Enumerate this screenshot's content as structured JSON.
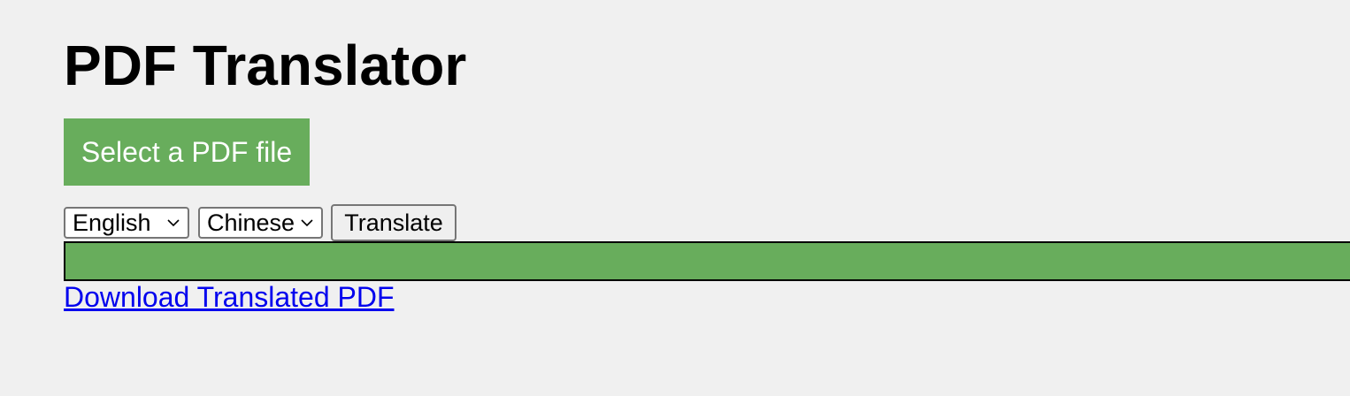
{
  "header": {
    "title": "PDF Translator"
  },
  "upload": {
    "button_label": "Select a PDF file"
  },
  "controls": {
    "source_language": "English",
    "target_language": "Chinese",
    "translate_label": "Translate"
  },
  "progress": {
    "fraction": 1.0,
    "fill_color": "#68ad5c"
  },
  "download": {
    "link_label": "Download Translated PDF"
  },
  "icons": {
    "dropdown": "chevron-down-icon"
  },
  "colors": {
    "accent": "#68ad5c",
    "link": "#0000ee",
    "background": "#f0f0f0"
  }
}
